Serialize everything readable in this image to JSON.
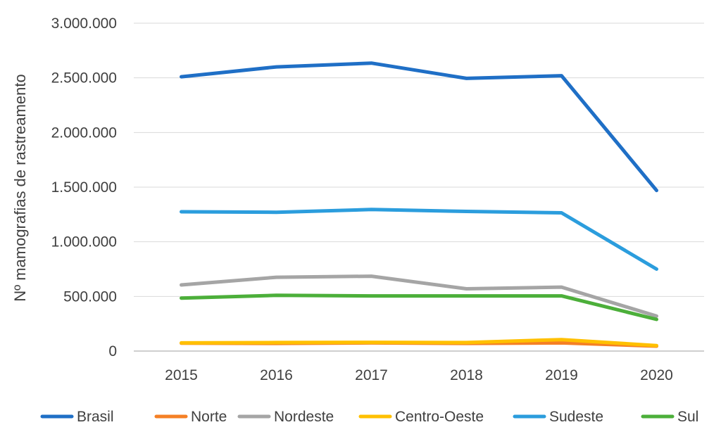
{
  "chart_data": {
    "type": "line",
    "x": [
      "2015",
      "2016",
      "2017",
      "2018",
      "2019",
      "2020"
    ],
    "ylabel": "Nº mamografias de rastreamento",
    "ylim": [
      0,
      3000000
    ],
    "yticks": [
      0,
      500000,
      1000000,
      1500000,
      2000000,
      2500000,
      3000000
    ],
    "ytick_labels": [
      "0",
      "500.000",
      "1.000.000",
      "1.500.000",
      "2.000.000",
      "2.500.000",
      "3.000.000"
    ],
    "grid": true,
    "legend_position": "bottom",
    "series": [
      {
        "name": "Brasil",
        "color": "#1f6fc6",
        "values": [
          2510000,
          2600000,
          2635000,
          2495000,
          2520000,
          1470000
        ]
      },
      {
        "name": "Norte",
        "color": "#f58025",
        "values": [
          72000,
          70000,
          75000,
          70000,
          75000,
          45000
        ]
      },
      {
        "name": "Nordeste",
        "color": "#a5a5a5",
        "values": [
          605000,
          675000,
          685000,
          570000,
          585000,
          320000
        ]
      },
      {
        "name": "Centro-Oeste",
        "color": "#ffc000",
        "values": [
          75000,
          78000,
          80000,
          78000,
          105000,
          50000
        ]
      },
      {
        "name": "Sudeste",
        "color": "#2b9ddd",
        "values": [
          1275000,
          1270000,
          1295000,
          1278000,
          1265000,
          750000
        ]
      },
      {
        "name": "Sul",
        "color": "#4caf3a",
        "values": [
          485000,
          510000,
          505000,
          505000,
          505000,
          290000
        ]
      }
    ]
  }
}
